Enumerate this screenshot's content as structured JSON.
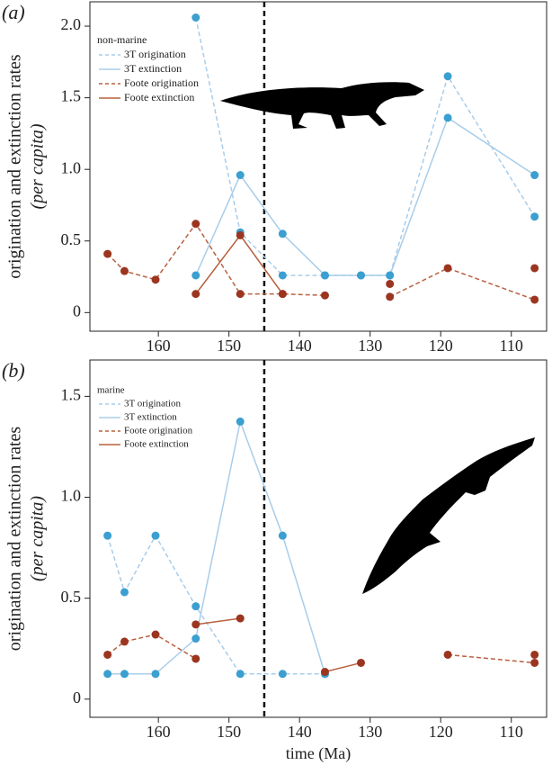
{
  "chart_data": [
    {
      "type": "line",
      "panel_label": "(a)",
      "ylabel": "origination and extinction rates",
      "ylabel_note": "(per capita)",
      "legend_title": "non-marine",
      "x": [
        167.2,
        164.8,
        160.4,
        154.7,
        148.4,
        142.4,
        136.4,
        131.3,
        127.2,
        119,
        106.7
      ],
      "xlim": [
        169.7,
        105
      ],
      "xticks": [
        160,
        150,
        140,
        130,
        120,
        110
      ],
      "ylim": [
        -0.13,
        2.17
      ],
      "yticks": [
        0,
        0.5,
        {
          "value": 1,
          "label": "1.0"
        },
        1.5,
        {
          "value": 2,
          "label": "2.0"
        }
      ],
      "vline": 145,
      "series": [
        {
          "name": "3T origination",
          "color": "#3b9fd0",
          "line_color": "#a8cdea",
          "linestyle": "dashed",
          "values": [
            null,
            null,
            null,
            2.06,
            0.56,
            0.26,
            0.26,
            0.26,
            0.26,
            1.65,
            0.67
          ]
        },
        {
          "name": "3T extinction",
          "color": "#3b9fd0",
          "line_color": "#a8cdea",
          "linestyle": "solid",
          "values": [
            null,
            null,
            null,
            0.26,
            0.96,
            0.55,
            0.26,
            0.26,
            0.26,
            1.36,
            0.96
          ]
        },
        {
          "name": "Foote origination",
          "color": "#9b3520",
          "line_color": "#b8603f",
          "linestyle": "dashed",
          "values": [
            0.41,
            0.29,
            0.23,
            0.62,
            0.13,
            0.13,
            0.12,
            null,
            0.11,
            0.31,
            0.09
          ]
        },
        {
          "name": "Foote extinction",
          "color": "#9b3520",
          "line_color": "#b8603f",
          "linestyle": "solid",
          "values": [
            null,
            null,
            null,
            0.13,
            0.54,
            0.13,
            null,
            null,
            0.2,
            null,
            0.31
          ]
        }
      ]
    },
    {
      "type": "line",
      "panel_label": "(b)",
      "ylabel": "origination and extinction rates",
      "ylabel_note": "(per capita)",
      "xlabel": "time (Ma)",
      "legend_title": "marine",
      "x": [
        167.2,
        164.8,
        160.4,
        154.7,
        148.4,
        142.4,
        136.4,
        131.3,
        127.2,
        119,
        106.7
      ],
      "xlim": [
        169.7,
        105
      ],
      "xticks": [
        160,
        150,
        140,
        130,
        120,
        110
      ],
      "ylim": [
        -0.09,
        1.68
      ],
      "yticks": [
        0,
        0.5,
        {
          "value": 1,
          "label": "1.0"
        },
        1.5
      ],
      "vline": 145,
      "series": [
        {
          "name": "3T origination",
          "color": "#3b9fd0",
          "line_color": "#a8cdea",
          "linestyle": "dashed",
          "values": [
            0.81,
            0.53,
            0.81,
            0.46,
            0.125,
            0.125,
            0.125,
            null,
            null,
            null,
            null
          ]
        },
        {
          "name": "3T extinction",
          "color": "#3b9fd0",
          "line_color": "#a8cdea",
          "linestyle": "solid",
          "values": [
            0.125,
            0.125,
            0.125,
            0.3,
            1.375,
            0.81,
            0.125,
            null,
            null,
            null,
            null
          ]
        },
        {
          "name": "Foote origination",
          "color": "#9b3520",
          "line_color": "#b8603f",
          "linestyle": "dashed",
          "values": [
            0.22,
            0.285,
            0.32,
            0.2,
            null,
            null,
            null,
            null,
            null,
            0.22,
            0.18
          ]
        },
        {
          "name": "Foote extinction",
          "color": "#9b3520",
          "line_color": "#b8603f",
          "linestyle": "solid",
          "values": [
            null,
            null,
            null,
            0.37,
            0.4,
            null,
            0.135,
            0.18,
            null,
            null,
            0.22
          ]
        }
      ]
    }
  ]
}
